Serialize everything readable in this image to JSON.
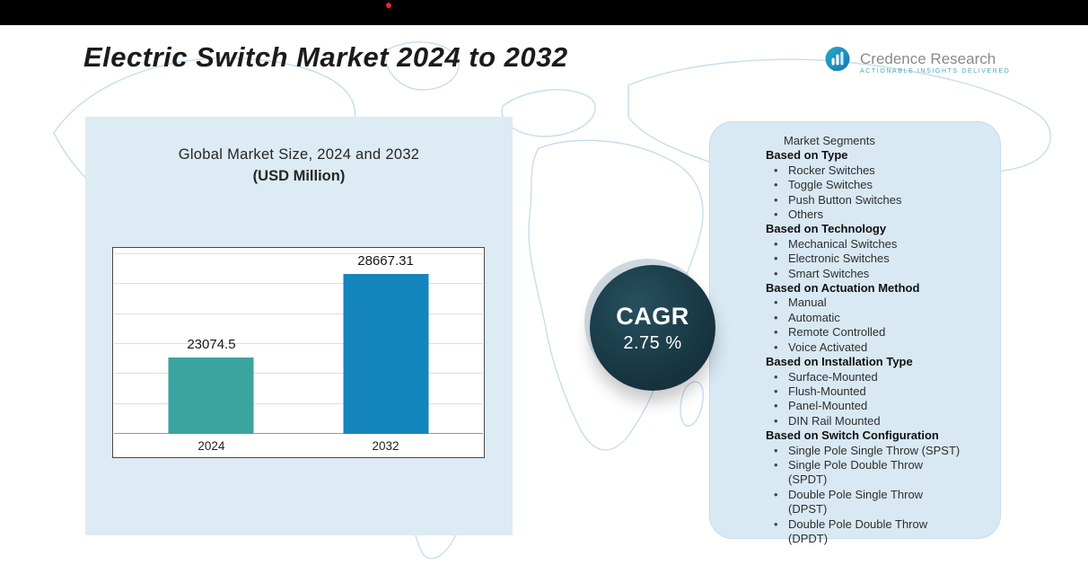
{
  "title": "Electric Switch Market 2024 to 2032",
  "logo": {
    "name": "Credence Research",
    "tagline": "Actionable Insights Delivered"
  },
  "chart": {
    "title_line1": "Global Market Size, 2024 and 2032",
    "title_line2": "(USD Million)"
  },
  "chart_data": {
    "type": "bar",
    "title": "Global Market Size, 2024 and 2032 (USD Million)",
    "categories": [
      "2024",
      "2032"
    ],
    "values": [
      23074.5,
      28667.31
    ],
    "xlabel": "",
    "ylabel": "",
    "ylim": [
      18000,
      30000
    ],
    "grid": true,
    "legend": "none",
    "bar_colors": [
      "#3aa49e",
      "#1585bd"
    ]
  },
  "cagr": {
    "label": "CAGR",
    "value": "2.75 %"
  },
  "segments": {
    "title": "Market Segments",
    "groups": [
      {
        "heading": "Based on Type",
        "items": [
          "Rocker Switches",
          "Toggle Switches",
          "Push Button Switches",
          "Others"
        ]
      },
      {
        "heading": "Based on Technology",
        "items": [
          "Mechanical Switches",
          "Electronic Switches",
          "Smart Switches"
        ]
      },
      {
        "heading": "Based on Actuation Method",
        "items": [
          "Manual",
          "Automatic",
          "Remote Controlled",
          "Voice Activated"
        ]
      },
      {
        "heading": "Based on Installation Type",
        "items": [
          "Surface-Mounted",
          "Flush-Mounted",
          "Panel-Mounted",
          "DIN Rail Mounted"
        ]
      },
      {
        "heading": "Based on Switch Configuration",
        "items": [
          "Single Pole Single Throw (SPST)",
          "Single Pole Double Throw (SPDT)",
          "Double Pole Single Throw (DPST)",
          "Double Pole Double Throw (DPDT)"
        ]
      }
    ]
  },
  "colors": {
    "brand_teal": "#2ba0c4",
    "cagr_circle": "#16323e",
    "panel_blue": "#dcebf4",
    "accent_red": "#e8262b"
  }
}
